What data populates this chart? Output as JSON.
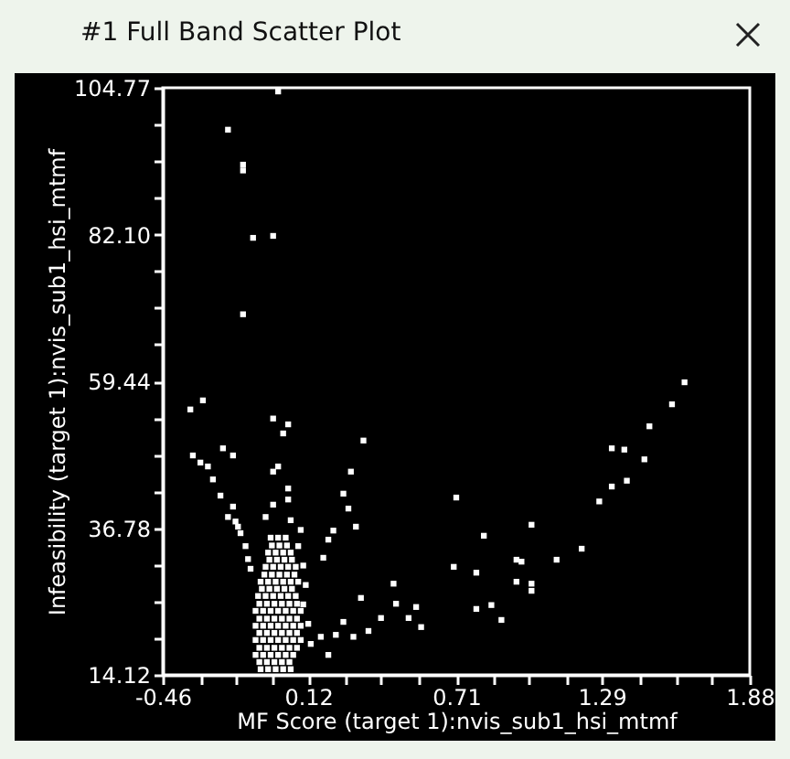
{
  "chart_data": {
    "type": "scatter",
    "title": "#1 Full Band Scatter Plot",
    "xlabel": "MF Score (target 1):nvis_sub1_hsi_mtmf",
    "ylabel": "Infeasibility (target 1):nvis_sub1_hsi_mtmf",
    "xlim": [
      -0.46,
      1.88
    ],
    "ylim": [
      14.12,
      104.77
    ],
    "xticks": [
      -0.46,
      {
        "value": -0.31,
        "label": null
      },
      {
        "value": -0.17,
        "label": null
      },
      {
        "value": -0.02,
        "label": null
      },
      0.12,
      {
        "value": 0.27,
        "label": null
      },
      {
        "value": 0.41,
        "label": null
      },
      {
        "value": 0.56,
        "label": null
      },
      0.71,
      {
        "value": 0.86,
        "label": null
      },
      {
        "value": 1.0,
        "label": null
      },
      {
        "value": 1.15,
        "label": null
      },
      1.29,
      {
        "value": 1.44,
        "label": null
      },
      {
        "value": 1.59,
        "label": null
      },
      {
        "value": 1.73,
        "label": null
      },
      1.88
    ],
    "yticks": [
      14.12,
      {
        "value": 19.79,
        "label": null
      },
      {
        "value": 25.45,
        "label": null
      },
      {
        "value": 31.12,
        "label": null
      },
      36.78,
      {
        "value": 42.45,
        "label": null
      },
      {
        "value": 48.11,
        "label": null
      },
      {
        "value": 53.78,
        "label": null
      },
      59.44,
      {
        "value": 65.11,
        "label": null
      },
      {
        "value": 70.77,
        "label": null
      },
      {
        "value": 76.44,
        "label": null
      },
      {
        "value": 82.1,
        "label": "82.10"
      },
      {
        "value": 87.77,
        "label": null
      },
      {
        "value": 93.44,
        "label": null
      },
      {
        "value": 99.1,
        "label": null
      },
      104.77
    ],
    "grid": false,
    "marker": "square",
    "series": [
      {
        "color": "#ffffff",
        "x": [
          0.0,
          -0.2,
          -0.14,
          -0.14,
          -0.1,
          -0.02,
          -0.14,
          -0.35,
          -0.3,
          -0.02,
          0.04,
          0.02,
          1.62,
          1.57,
          1.48,
          -0.34,
          -0.31,
          -0.28,
          -0.22,
          -0.18,
          -0.26,
          -0.23,
          -0.18,
          -0.17,
          0.0,
          0.04,
          -0.02,
          -0.02,
          0.04,
          0.34,
          0.29,
          0.26,
          0.28,
          0.31,
          0.71,
          0.22,
          0.2,
          0.18,
          0.7,
          0.46,
          0.55,
          0.47,
          0.52,
          0.57,
          0.41,
          0.33,
          0.36,
          0.3,
          0.26,
          0.23,
          0.17,
          0.2,
          0.13,
          1.33,
          1.38,
          1.46,
          1.39,
          1.33,
          1.28,
          1.01,
          0.82,
          1.21,
          1.11,
          0.95,
          0.97,
          0.79,
          0.95,
          1.01,
          1.01,
          0.85,
          0.79,
          0.89,
          -0.15,
          -0.13,
          -0.12,
          -0.11,
          -0.16,
          0.08,
          0.1,
          0.11,
          0.1,
          0.12,
          0.09,
          0.05,
          -0.05,
          -0.2,
          -0.07,
          -0.04,
          -0.01,
          0.02,
          0.05,
          -0.09,
          -0.06,
          -0.03,
          0.0,
          0.03,
          0.06,
          -0.09,
          -0.06,
          -0.03,
          0.0,
          0.03,
          0.06,
          0.09,
          -0.09,
          -0.06,
          -0.03,
          0.0,
          0.03,
          0.06,
          0.09,
          -0.09,
          -0.06,
          -0.03,
          0.0,
          0.03,
          0.06,
          0.09,
          -0.08,
          -0.05,
          -0.02,
          0.01,
          0.04,
          0.07,
          -0.07,
          -0.04,
          -0.01,
          0.02,
          0.05,
          0.08,
          -0.05,
          -0.02,
          0.01,
          0.04,
          0.07,
          -0.04,
          -0.01,
          0.02,
          0.05,
          -0.03,
          0.0,
          0.03,
          -0.075,
          -0.045,
          -0.015,
          0.015,
          0.045,
          -0.075,
          -0.045,
          -0.015,
          0.015,
          0.045,
          0.075,
          -0.075,
          -0.045,
          -0.015,
          0.015,
          0.045,
          0.075,
          -0.075,
          -0.045,
          -0.015,
          0.015,
          0.045,
          0.075,
          -0.075,
          -0.045,
          -0.015,
          0.015,
          0.045,
          0.075,
          -0.065,
          -0.035,
          -0.005,
          0.025,
          0.055,
          -0.055,
          -0.025,
          0.005,
          0.035,
          0.065,
          -0.035,
          -0.005,
          0.025,
          0.055,
          -0.025,
          0.005,
          0.035
        ],
        "values": [
          104.2,
          98.3,
          92.9,
          92.0,
          81.6,
          81.9,
          69.8,
          55.1,
          56.5,
          53.7,
          52.8,
          51.4,
          59.3,
          55.9,
          52.5,
          48.0,
          46.9,
          46.3,
          49.1,
          48.0,
          44.3,
          41.8,
          40.1,
          37.8,
          46.3,
          42.9,
          45.5,
          40.4,
          41.2,
          50.3,
          45.5,
          42.1,
          39.8,
          37.0,
          41.5,
          36.4,
          35.0,
          32.2,
          30.8,
          28.2,
          24.6,
          25.1,
          22.9,
          21.5,
          22.9,
          26.0,
          20.9,
          20.0,
          22.3,
          20.3,
          20.0,
          17.2,
          18.9,
          49.1,
          48.9,
          47.4,
          44.1,
          43.2,
          40.9,
          37.3,
          35.6,
          33.6,
          31.9,
          31.9,
          31.6,
          29.9,
          28.5,
          28.2,
          27.1,
          24.9,
          24.3,
          22.6,
          36.0,
          34.0,
          32.0,
          30.5,
          37.0,
          34.0,
          31.0,
          28.0,
          25.0,
          22.0,
          36.5,
          38.0,
          38.5,
          38.5,
          15.0,
          15.0,
          15.0,
          15.0,
          15.0,
          17.2,
          17.2,
          17.2,
          17.2,
          17.2,
          17.2,
          19.5,
          19.5,
          19.5,
          19.5,
          19.5,
          19.5,
          19.5,
          21.7,
          21.7,
          21.7,
          21.7,
          21.7,
          21.7,
          21.7,
          24.0,
          24.0,
          24.0,
          24.0,
          24.0,
          24.0,
          24.0,
          26.3,
          26.3,
          26.3,
          26.3,
          26.3,
          26.3,
          28.5,
          28.5,
          28.5,
          28.5,
          28.5,
          28.5,
          30.8,
          30.8,
          30.8,
          30.8,
          30.8,
          33.0,
          33.0,
          33.0,
          33.0,
          35.3,
          35.3,
          35.3,
          16.1,
          16.1,
          16.1,
          16.1,
          16.1,
          18.3,
          18.3,
          18.3,
          18.3,
          18.3,
          18.3,
          20.6,
          20.6,
          20.6,
          20.6,
          20.6,
          20.6,
          22.8,
          22.8,
          22.8,
          22.8,
          22.8,
          22.8,
          25.1,
          25.1,
          25.1,
          25.1,
          25.1,
          25.1,
          27.4,
          27.4,
          27.4,
          27.4,
          27.4,
          29.6,
          29.6,
          29.6,
          29.6,
          29.6,
          31.9,
          31.9,
          31.9,
          31.9,
          34.1,
          34.1,
          34.1
        ]
      }
    ]
  }
}
